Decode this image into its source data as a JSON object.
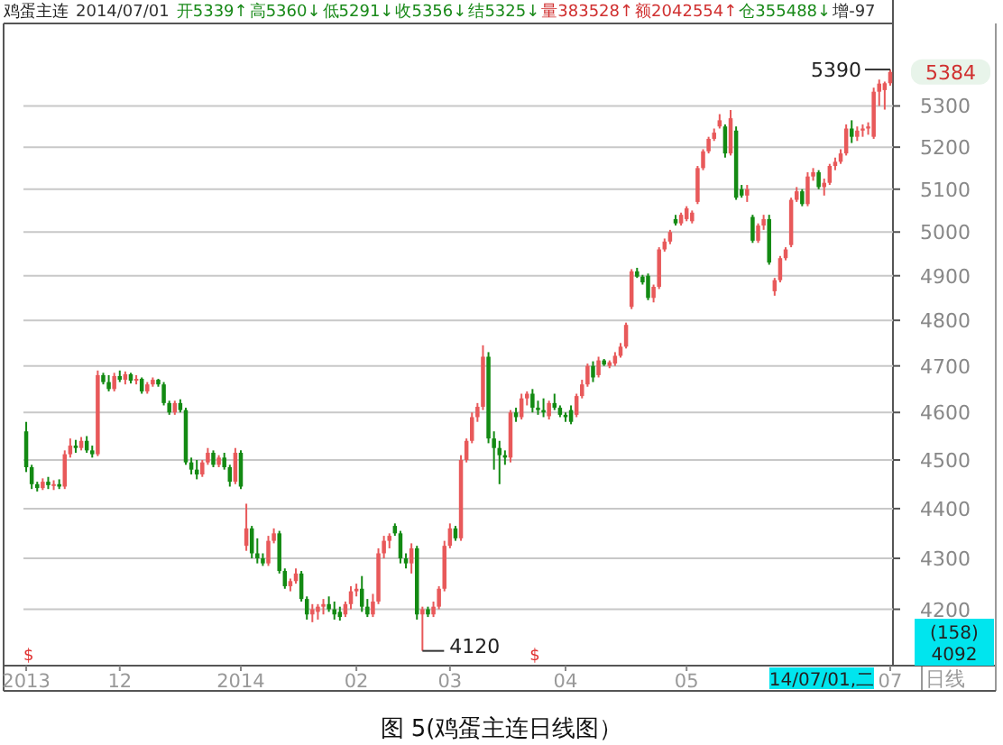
{
  "chart_data": {
    "type": "candlestick",
    "title": "鸡蛋主连",
    "categories": [
      "2013",
      null,
      null,
      null,
      null,
      null,
      null,
      null,
      null,
      null,
      null,
      null,
      null,
      null,
      null,
      null,
      null,
      "12",
      null,
      null,
      null,
      null,
      null,
      null,
      null,
      null,
      null,
      null,
      null,
      null,
      null,
      null,
      null,
      null,
      null,
      null,
      null,
      null,
      null,
      "2014",
      null,
      null,
      null,
      null,
      null,
      null,
      null,
      null,
      null,
      null,
      null,
      null,
      null,
      null,
      null,
      null,
      null,
      null,
      null,
      null,
      "02",
      null,
      null,
      null,
      null,
      null,
      null,
      null,
      null,
      null,
      null,
      null,
      null,
      null,
      null,
      null,
      null,
      "03",
      null,
      null,
      null,
      null,
      null,
      null,
      null,
      null,
      null,
      null,
      null,
      null,
      null,
      null,
      null,
      null,
      null,
      null,
      null,
      null,
      "04",
      null,
      null,
      null,
      null,
      null,
      null,
      null,
      null,
      null,
      null,
      null,
      null,
      null,
      null,
      null,
      null,
      null,
      null,
      null,
      null,
      null,
      "05",
      null,
      null,
      null,
      null,
      null,
      null,
      null,
      null,
      null,
      null,
      null,
      null,
      null,
      null,
      null,
      null,
      null,
      null,
      null,
      null,
      null,
      null,
      null,
      null,
      null,
      null,
      null,
      null,
      null,
      null,
      null,
      null,
      null,
      null,
      null,
      null,
      "07"
    ],
    "ohlc": [
      [
        4560,
        4580,
        4475,
        4485
      ],
      [
        4485,
        4490,
        4440,
        4450
      ],
      [
        4450,
        4455,
        4435,
        4442
      ],
      [
        4442,
        4462,
        4438,
        4455
      ],
      [
        4455,
        4465,
        4440,
        4448
      ],
      [
        4448,
        4458,
        4438,
        4450
      ],
      [
        4450,
        4460,
        4440,
        4445
      ],
      [
        4445,
        4520,
        4440,
        4512
      ],
      [
        4512,
        4545,
        4505,
        4530
      ],
      [
        4530,
        4542,
        4515,
        4525
      ],
      [
        4525,
        4548,
        4520,
        4540
      ],
      [
        4540,
        4550,
        4515,
        4520
      ],
      [
        4520,
        4530,
        4505,
        4512
      ],
      [
        4512,
        4690,
        4508,
        4680
      ],
      [
        4680,
        4685,
        4660,
        4665
      ],
      [
        4665,
        4680,
        4645,
        4650
      ],
      [
        4650,
        4685,
        4645,
        4678
      ],
      [
        4678,
        4690,
        4665,
        4670
      ],
      [
        4670,
        4688,
        4660,
        4682
      ],
      [
        4682,
        4685,
        4662,
        4668
      ],
      [
        4668,
        4680,
        4660,
        4672
      ],
      [
        4672,
        4675,
        4640,
        4645
      ],
      [
        4645,
        4665,
        4640,
        4660
      ],
      [
        4660,
        4675,
        4655,
        4670
      ],
      [
        4670,
        4672,
        4655,
        4660
      ],
      [
        4660,
        4665,
        4615,
        4620
      ],
      [
        4620,
        4625,
        4595,
        4600
      ],
      [
        4600,
        4625,
        4595,
        4620
      ],
      [
        4620,
        4628,
        4600,
        4605
      ],
      [
        4605,
        4610,
        4490,
        4495
      ],
      [
        4495,
        4505,
        4470,
        4480
      ],
      [
        4480,
        4500,
        4460,
        4470
      ],
      [
        4470,
        4500,
        4465,
        4495
      ],
      [
        4495,
        4525,
        4490,
        4515
      ],
      [
        4515,
        4520,
        4485,
        4490
      ],
      [
        4490,
        4510,
        4485,
        4505
      ],
      [
        4505,
        4515,
        4480,
        4485
      ],
      [
        4485,
        4490,
        4445,
        4455
      ],
      [
        4455,
        4525,
        4450,
        4515
      ],
      [
        4515,
        4520,
        4440,
        4445
      ],
      [
        4325,
        4410,
        4315,
        4360
      ],
      [
        4360,
        4365,
        4300,
        4310
      ],
      [
        4310,
        4340,
        4290,
        4300
      ],
      [
        4300,
        4310,
        4285,
        4290
      ],
      [
        4290,
        4345,
        4285,
        4335
      ],
      [
        4335,
        4360,
        4330,
        4350
      ],
      [
        4350,
        4355,
        4270,
        4275
      ],
      [
        4275,
        4280,
        4240,
        4245
      ],
      [
        4245,
        4260,
        4235,
        4255
      ],
      [
        4255,
        4280,
        4250,
        4270
      ],
      [
        4270,
        4275,
        4215,
        4220
      ],
      [
        4220,
        4225,
        4180,
        4190
      ],
      [
        4190,
        4210,
        4175,
        4200
      ],
      [
        4195,
        4210,
        4180,
        4205
      ],
      [
        4205,
        4220,
        4190,
        4210
      ],
      [
        4210,
        4225,
        4195,
        4200
      ],
      [
        4200,
        4215,
        4180,
        4190
      ],
      [
        4195,
        4205,
        4178,
        4185
      ],
      [
        4190,
        4215,
        4185,
        4210
      ],
      [
        4210,
        4245,
        4200,
        4235
      ],
      [
        4235,
        4250,
        4225,
        4240
      ],
      [
        4240,
        4265,
        4195,
        4205
      ],
      [
        4205,
        4220,
        4185,
        4190
      ],
      [
        4190,
        4230,
        4185,
        4215
      ],
      [
        4215,
        4320,
        4210,
        4310
      ],
      [
        4310,
        4345,
        4300,
        4335
      ],
      [
        4335,
        4350,
        4320,
        4345
      ],
      [
        4365,
        4370,
        4345,
        4350
      ],
      [
        4350,
        4355,
        4290,
        4300
      ],
      [
        4300,
        4310,
        4280,
        4290
      ],
      [
        4290,
        4330,
        4270,
        4320
      ],
      [
        4320,
        4325,
        4180,
        4190
      ],
      [
        4190,
        4205,
        4120,
        4200
      ],
      [
        4200,
        4205,
        4185,
        4190
      ],
      [
        4190,
        4215,
        4185,
        4205
      ],
      [
        4205,
        4245,
        4200,
        4240
      ],
      [
        4240,
        4335,
        4235,
        4325
      ],
      [
        4325,
        4370,
        4320,
        4360
      ],
      [
        4360,
        4365,
        4335,
        4340
      ],
      [
        4340,
        4510,
        4335,
        4500
      ],
      [
        4500,
        4545,
        4495,
        4540
      ],
      [
        4540,
        4600,
        4535,
        4590
      ],
      [
        4590,
        4620,
        4580,
        4612
      ],
      [
        4612,
        4745,
        4605,
        4720
      ],
      [
        4720,
        4730,
        4535,
        4545
      ],
      [
        4545,
        4560,
        4480,
        4525
      ],
      [
        4525,
        4540,
        4450,
        4510
      ],
      [
        4510,
        4520,
        4490,
        4505
      ],
      [
        4505,
        4605,
        4495,
        4600
      ],
      [
        4600,
        4610,
        4580,
        4590
      ],
      [
        4590,
        4640,
        4585,
        4630
      ],
      [
        4630,
        4645,
        4615,
        4640
      ],
      [
        4640,
        4650,
        4600,
        4610
      ],
      [
        4610,
        4625,
        4595,
        4605
      ],
      [
        4605,
        4630,
        4590,
        4600
      ],
      [
        4592,
        4625,
        4585,
        4620
      ],
      [
        4620,
        4640,
        4605,
        4610
      ],
      [
        4610,
        4615,
        4590,
        4595
      ],
      [
        4595,
        4600,
        4580,
        4590
      ],
      [
        4605,
        4615,
        4575,
        4580
      ],
      [
        4595,
        4640,
        4590,
        4635
      ],
      [
        4635,
        4670,
        4630,
        4660
      ],
      [
        4660,
        4705,
        4655,
        4700
      ],
      [
        4700,
        4710,
        4665,
        4675
      ],
      [
        4680,
        4720,
        4675,
        4712
      ],
      [
        4712,
        4715,
        4700,
        4703
      ],
      [
        4700,
        4712,
        4695,
        4708
      ],
      [
        4705,
        4730,
        4700,
        4722
      ],
      [
        4722,
        4750,
        4718,
        4742
      ],
      [
        4742,
        4795,
        4738,
        4790
      ],
      [
        4830,
        4915,
        4825,
        4910
      ],
      [
        4910,
        4918,
        4895,
        4898
      ],
      [
        4898,
        4902,
        4880,
        4885
      ],
      [
        4900,
        4905,
        4845,
        4850
      ],
      [
        4850,
        4880,
        4840,
        4875
      ],
      [
        4875,
        4965,
        4870,
        4960
      ],
      [
        4960,
        4985,
        4955,
        4978
      ],
      [
        4978,
        5005,
        4972,
        5000
      ],
      [
        5030,
        5040,
        5015,
        5020
      ],
      [
        5020,
        5045,
        5015,
        5040
      ],
      [
        5030,
        5060,
        5025,
        5055
      ],
      [
        5025,
        5050,
        5020,
        5045
      ],
      [
        5070,
        5155,
        5065,
        5150
      ],
      [
        5150,
        5195,
        5145,
        5190
      ],
      [
        5190,
        5225,
        5185,
        5220
      ],
      [
        5220,
        5245,
        5215,
        5235
      ],
      [
        5250,
        5280,
        5245,
        5265
      ],
      [
        5250,
        5255,
        5175,
        5185
      ],
      [
        5185,
        5290,
        5180,
        5270
      ],
      [
        5240,
        5250,
        5075,
        5080
      ],
      [
        5100,
        5110,
        5080,
        5085
      ],
      [
        5085,
        5110,
        5070,
        5100
      ],
      [
        5035,
        5040,
        4975,
        4980
      ],
      [
        4980,
        5020,
        4975,
        5015
      ],
      [
        5015,
        5040,
        5005,
        5030
      ],
      [
        5030,
        5040,
        4925,
        4930
      ],
      [
        4865,
        4895,
        4855,
        4890
      ],
      [
        4890,
        4945,
        4885,
        4940
      ],
      [
        4940,
        4965,
        4935,
        4960
      ],
      [
        4970,
        5080,
        4965,
        5075
      ],
      [
        5075,
        5105,
        5070,
        5095
      ],
      [
        5095,
        5100,
        5060,
        5065
      ],
      [
        5065,
        5140,
        5060,
        5130
      ],
      [
        5130,
        5150,
        5120,
        5140
      ],
      [
        5140,
        5145,
        5100,
        5105
      ],
      [
        5105,
        5125,
        5085,
        5115
      ],
      [
        5115,
        5160,
        5110,
        5155
      ],
      [
        5155,
        5175,
        5145,
        5165
      ],
      [
        5165,
        5195,
        5160,
        5185
      ],
      [
        5185,
        5255,
        5180,
        5245
      ],
      [
        5245,
        5265,
        5210,
        5225
      ],
      [
        5225,
        5250,
        5215,
        5240
      ],
      [
        5240,
        5255,
        5225,
        5245
      ],
      [
        5245,
        5260,
        5230,
        5250
      ],
      [
        5225,
        5345,
        5220,
        5335
      ],
      [
        5335,
        5365,
        5300,
        5355
      ],
      [
        5339,
        5360,
        5291,
        5356
      ],
      [
        5356,
        5390,
        5350,
        5384
      ]
    ],
    "log": true,
    "ylim": [
      4092,
      5506
    ],
    "yticks": [
      4200,
      4300,
      4400,
      4500,
      4600,
      4700,
      4800,
      4900,
      5000,
      5100,
      5200,
      5300
    ],
    "grid": "y",
    "annotations": [
      "2014/07/01",
      "开5339↑",
      "高5360↓",
      "低5291↓",
      "收5356↓",
      "结5325↓",
      "量383528↑",
      "额2042554↑",
      "仓355488↓",
      "增-97",
      "5390",
      "4120",
      "5384",
      "(158)",
      "4092",
      "日线",
      "14/07/01,二",
      "$",
      "$",
      "图 5(鸡蛋主连日线图）"
    ]
  }
}
